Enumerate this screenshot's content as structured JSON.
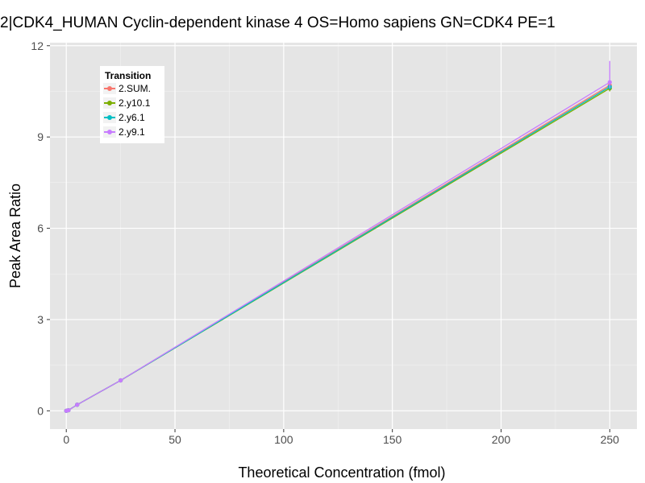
{
  "chart_data": {
    "type": "line",
    "title": "2|CDK4_HUMAN Cyclin-dependent kinase 4 OS=Homo sapiens GN=CDK4 PE=1",
    "xlabel": "Theoretical Concentration (fmol)",
    "ylabel": "Peak Area Ratio",
    "xlim": [
      -7.5,
      262.5
    ],
    "ylim": [
      -0.6,
      12.1
    ],
    "x_ticks": [
      0,
      50,
      100,
      150,
      200,
      250
    ],
    "y_ticks": [
      0,
      3,
      6,
      9,
      12
    ],
    "grid": true,
    "legend": {
      "title": "Transition",
      "position": "top-left"
    },
    "series": [
      {
        "name": "2.SUM.",
        "color": "#F8766D",
        "points": [
          [
            0,
            0.0
          ],
          [
            1,
            0.02
          ],
          [
            5,
            0.2
          ],
          [
            25,
            1.0
          ],
          [
            250,
            10.7
          ]
        ],
        "error_range": [
          10.55,
          10.85
        ]
      },
      {
        "name": "2.y10.1",
        "color": "#7CAE00",
        "points": [
          [
            0,
            0.0
          ],
          [
            1,
            0.02
          ],
          [
            5,
            0.2
          ],
          [
            25,
            1.0
          ],
          [
            250,
            10.6
          ]
        ],
        "error_range": [
          10.5,
          10.7
        ]
      },
      {
        "name": "2.y6.1",
        "color": "#00BFC4",
        "points": [
          [
            0,
            0.0
          ],
          [
            1,
            0.02
          ],
          [
            5,
            0.2
          ],
          [
            25,
            1.0
          ],
          [
            250,
            10.65
          ]
        ],
        "error_range": [
          10.55,
          10.75
        ]
      },
      {
        "name": "2.y9.1",
        "color": "#C77CFF",
        "points": [
          [
            0,
            0.0
          ],
          [
            1,
            0.02
          ],
          [
            5,
            0.2
          ],
          [
            25,
            1.0
          ],
          [
            250,
            10.8
          ]
        ],
        "error_range": [
          10.6,
          11.5
        ]
      }
    ]
  }
}
